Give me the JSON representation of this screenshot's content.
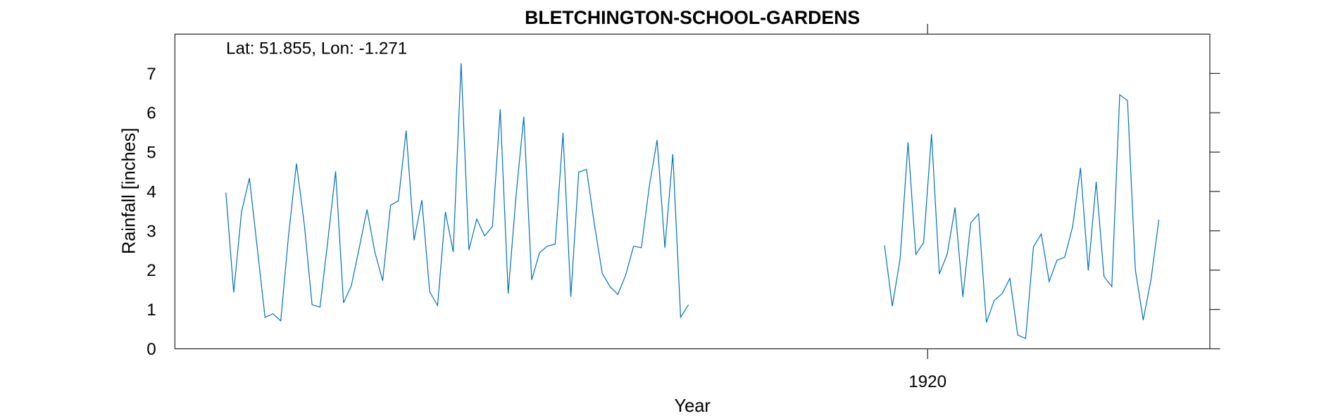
{
  "chart_data": {
    "type": "line",
    "title": "BLETCHINGTON-SCHOOL-GARDENS",
    "annotation": "Lat: 51.855, Lon: -1.271",
    "x_label": "Year",
    "y_label": "Rainfall [inches]",
    "color": "#0072bd",
    "xlim": [
      1912,
      1923
    ],
    "xticks": [
      1920
    ],
    "ylim": [
      0,
      8
    ],
    "yticks": [
      0,
      1,
      2,
      3,
      4,
      5,
      6,
      7
    ],
    "x": [
      1912.542,
      1912.625,
      1912.708,
      1912.792,
      1912.875,
      1912.958,
      1913.042,
      1913.125,
      1913.208,
      1913.292,
      1913.375,
      1913.458,
      1913.542,
      1913.625,
      1913.708,
      1913.792,
      1913.875,
      1913.958,
      1914.042,
      1914.125,
      1914.208,
      1914.292,
      1914.375,
      1914.458,
      1914.542,
      1914.625,
      1914.708,
      1914.792,
      1914.875,
      1914.958,
      1915.042,
      1915.125,
      1915.208,
      1915.292,
      1915.375,
      1915.458,
      1915.542,
      1915.625,
      1915.708,
      1915.792,
      1915.875,
      1915.958,
      1916.042,
      1916.125,
      1916.208,
      1916.292,
      1916.375,
      1916.458,
      1916.542,
      1916.625,
      1916.708,
      1916.792,
      1916.875,
      1916.958,
      1917.042,
      1917.125,
      1917.208,
      1917.292,
      1917.375,
      1917.458,
      1917.542,
      1917.625,
      1917.708,
      1917.792,
      1917.875,
      1917.958,
      1918.042,
      1918.125,
      1918.208,
      1918.292,
      1918.375,
      1918.458,
      1918.542,
      1918.625,
      1918.708,
      1918.792,
      1918.875,
      1918.958,
      1919.042,
      1919.125,
      1919.208,
      1919.292,
      1919.375,
      1919.458,
      1919.542,
      1919.625,
      1919.708,
      1919.792,
      1919.875,
      1919.958,
      1920.042,
      1920.125,
      1920.208,
      1920.292,
      1920.375,
      1920.458,
      1920.542,
      1920.625,
      1920.708,
      1920.792,
      1920.875,
      1920.958,
      1921.042,
      1921.125,
      1921.208,
      1921.292,
      1921.375,
      1921.458,
      1921.542,
      1921.625,
      1921.708,
      1921.792,
      1921.875,
      1921.958,
      1922.042,
      1922.125,
      1922.208,
      1922.292,
      1922.375,
      1922.458
    ],
    "values": [
      3.97,
      1.43,
      3.48,
      4.34,
      2.57,
      0.8,
      0.89,
      0.71,
      2.89,
      4.71,
      3.17,
      1.12,
      1.06,
      2.74,
      4.51,
      1.17,
      1.6,
      2.55,
      3.54,
      2.46,
      1.73,
      3.65,
      3.76,
      5.55,
      2.76,
      3.78,
      1.45,
      1.1,
      3.48,
      2.46,
      7.26,
      2.51,
      3.3,
      2.87,
      3.11,
      6.09,
      1.4,
      3.87,
      5.9,
      1.75,
      2.44,
      2.61,
      2.66,
      5.49,
      1.32,
      4.49,
      4.56,
      3.17,
      1.92,
      1.58,
      1.38,
      1.88,
      2.61,
      2.57,
      4.13,
      5.31,
      2.57,
      4.95,
      0.8,
      1.12,
      null,
      null,
      null,
      null,
      null,
      null,
      null,
      null,
      null,
      null,
      null,
      null,
      null,
      null,
      null,
      null,
      null,
      null,
      null,
      null,
      null,
      null,
      null,
      null,
      2.63,
      1.08,
      2.29,
      5.25,
      2.4,
      2.7,
      5.46,
      1.9,
      2.4,
      3.59,
      1.32,
      3.2,
      3.43,
      0.67,
      1.23,
      1.4,
      1.79,
      0.35,
      0.26,
      2.59,
      2.92,
      1.71,
      2.25,
      2.33,
      3.11,
      4.6,
      1.99,
      4.25,
      1.84,
      1.58,
      6.46,
      6.31,
      2.01,
      0.73,
      1.77,
      3.28
    ]
  }
}
